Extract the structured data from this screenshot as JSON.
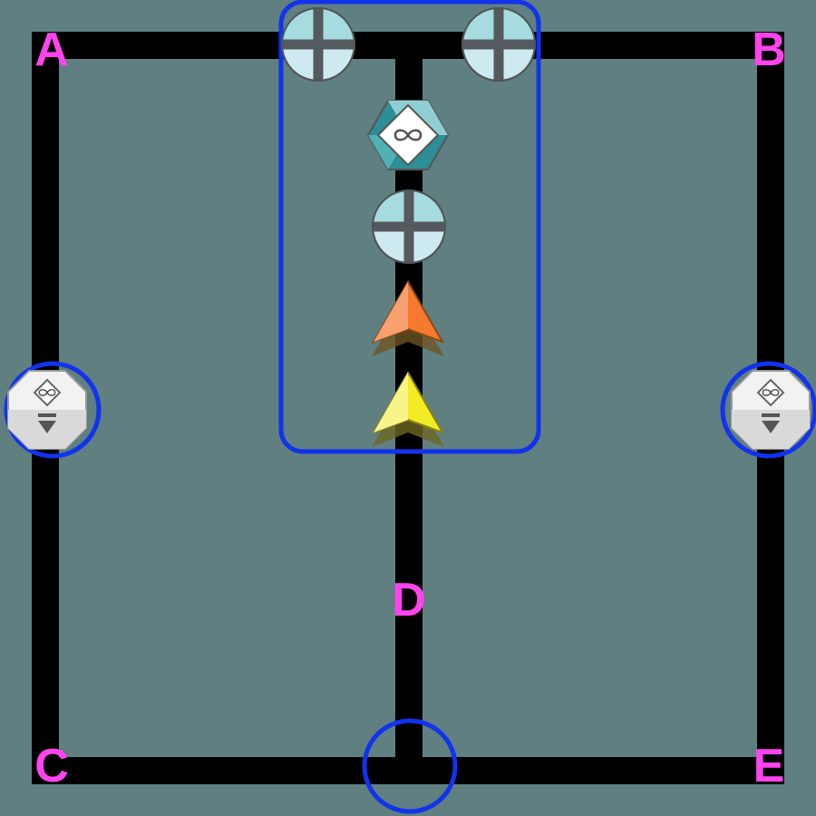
{
  "board": {
    "background_color": "#607f80",
    "track_color": "#000000",
    "label_color": "#ff44ee",
    "highlight_color": "#1133ee"
  },
  "labels": {
    "a": "A",
    "b": "B",
    "c": "C",
    "d": "D",
    "e": "E"
  },
  "pieces": {
    "cross_tile": "cross-tile-icon",
    "teal_infinity": "teal-hexagon-infinity-icon",
    "orange_arrow": "orange-arrow-up-icon",
    "yellow_arrow": "yellow-arrow-up-icon",
    "white_token": "white-octagon-infinity-drop-icon"
  },
  "colors": {
    "cross_fill": "#cdeaf0",
    "cross_bar": "#555a5e",
    "teal": "#2e8e95",
    "orange": "#f57a2e",
    "yellow": "#f2ec23",
    "white_token": "#f0f0f0"
  }
}
